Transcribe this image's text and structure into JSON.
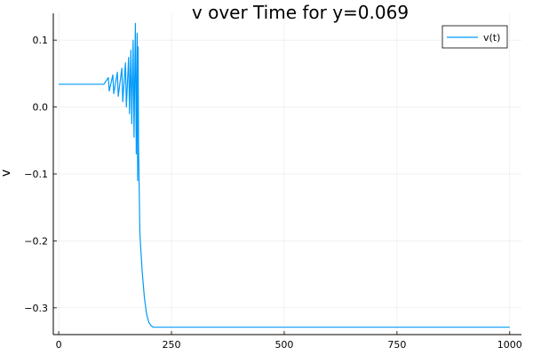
{
  "chart_data": {
    "type": "line",
    "title": "v over Time for y=0.069",
    "xlabel": "",
    "ylabel": "v",
    "xlim": [
      -12,
      1026
    ],
    "ylim": [
      -0.34,
      0.14
    ],
    "xticks": [
      0,
      250,
      500,
      750,
      1000
    ],
    "xtick_labels": [
      "0",
      "250",
      "500",
      "750",
      "1000"
    ],
    "yticks": [
      -0.3,
      -0.2,
      -0.1,
      0.0,
      0.1
    ],
    "ytick_labels": [
      "−0.3",
      "−0.2",
      "−0.1",
      "0.0",
      "0.1"
    ],
    "grid": true,
    "legend_position": "top-right",
    "series": [
      {
        "name": "v(t)",
        "color": "#009AFA",
        "x": [
          0,
          100,
          110,
          112,
          120,
          122,
          130,
          132,
          140,
          142,
          148,
          150,
          155,
          157,
          160,
          162,
          165,
          167,
          170,
          172,
          174,
          175,
          176,
          177,
          178,
          180,
          185,
          190,
          195,
          200,
          205,
          210,
          220,
          250,
          400,
          600,
          800,
          1000
        ],
        "y": [
          0.034,
          0.034,
          0.044,
          0.024,
          0.048,
          0.02,
          0.052,
          0.016,
          0.058,
          0.008,
          0.066,
          0.0,
          0.074,
          -0.01,
          0.085,
          -0.025,
          0.1,
          -0.045,
          0.125,
          -0.07,
          0.11,
          -0.11,
          0.09,
          -0.06,
          -0.1,
          -0.19,
          -0.245,
          -0.285,
          -0.31,
          -0.322,
          -0.327,
          -0.329,
          -0.329,
          -0.329,
          -0.329,
          -0.329,
          -0.329,
          -0.329
        ]
      }
    ]
  }
}
